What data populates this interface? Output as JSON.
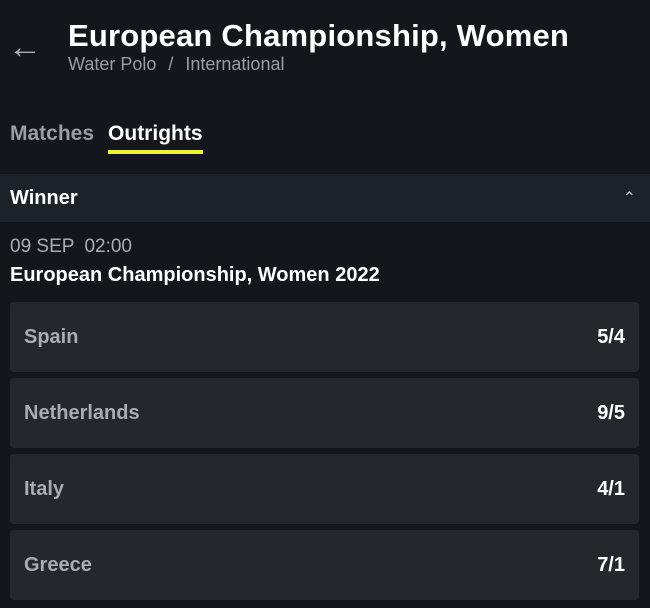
{
  "header": {
    "back_icon": "arrow-left-icon",
    "title": "European Championship, Women",
    "breadcrumb": [
      "Water Polo",
      "International"
    ],
    "separator": "/"
  },
  "tabs": [
    {
      "label": "Matches",
      "active": false
    },
    {
      "label": "Outrights",
      "active": true
    }
  ],
  "accent": "#f1f23a",
  "market": {
    "label": "Winner",
    "toggle_icon": "chevron-up-icon",
    "date": "09 SEP",
    "time": "02:00",
    "event": "European Championship, Women 2022",
    "selections": [
      {
        "name": "Spain",
        "odds": "5/4"
      },
      {
        "name": "Netherlands",
        "odds": "9/5"
      },
      {
        "name": "Italy",
        "odds": "4/1"
      },
      {
        "name": "Greece",
        "odds": "7/1"
      }
    ]
  }
}
